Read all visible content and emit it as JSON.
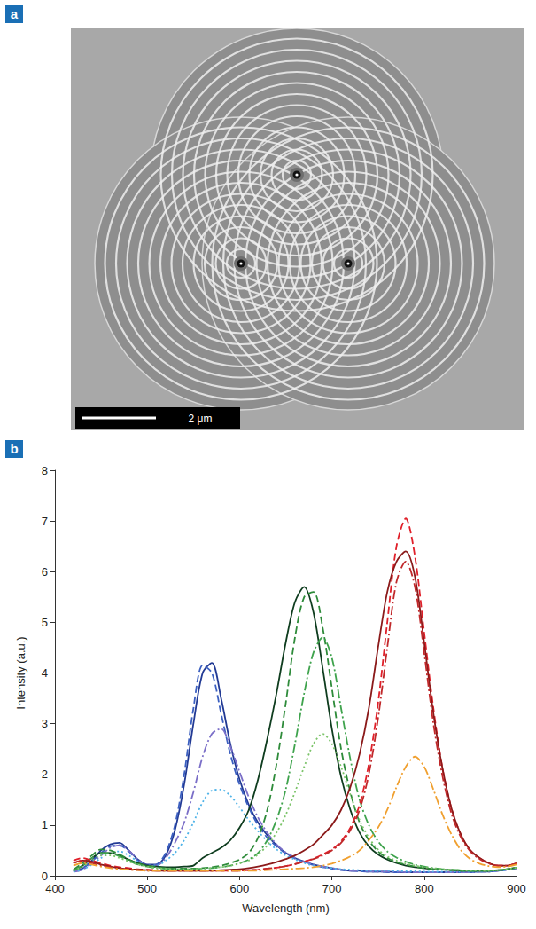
{
  "image_panel": {
    "panel_label": "a",
    "scale_bar": "2 μm"
  },
  "chart_data": {
    "panel_label": "b",
    "type": "line",
    "x_label": "Wavelength (nm)",
    "y_label": "Intensity (a.u.)",
    "xlim": [
      400,
      900
    ],
    "xticks": [
      400,
      500,
      600,
      700,
      800,
      900
    ],
    "ylim": [
      0,
      8
    ],
    "yticks": [
      0,
      1,
      2,
      3,
      4,
      5,
      6,
      7,
      8
    ],
    "grid": false,
    "x": [
      420,
      430,
      440,
      450,
      460,
      470,
      480,
      490,
      500,
      510,
      520,
      530,
      540,
      550,
      560,
      570,
      580,
      590,
      600,
      610,
      620,
      630,
      640,
      650,
      660,
      670,
      680,
      690,
      700,
      710,
      720,
      730,
      740,
      750,
      760,
      770,
      780,
      790,
      800,
      810,
      820,
      830,
      840,
      850,
      860,
      870,
      880,
      890,
      900
    ],
    "series": [
      {
        "color": "#223a94",
        "line_style": "solid",
        "values": [
          0.1,
          0.15,
          0.3,
          0.5,
          0.62,
          0.65,
          0.5,
          0.32,
          0.22,
          0.22,
          0.4,
          0.9,
          1.8,
          3.0,
          4.0,
          4.2,
          3.5,
          2.6,
          1.9,
          1.4,
          1.05,
          0.8,
          0.6,
          0.45,
          0.35,
          0.28,
          0.22,
          0.18,
          0.15,
          0.12,
          0.1,
          0.1,
          0.08,
          0.08,
          0.08,
          0.07,
          0.07,
          0.07,
          0.07,
          0.07,
          0.07,
          0.07,
          0.07,
          0.07,
          0.08,
          0.08,
          0.1,
          0.12,
          0.15
        ]
      },
      {
        "color": "#3b5fc0",
        "line_style": "dashed",
        "values": [
          0.1,
          0.15,
          0.28,
          0.45,
          0.58,
          0.6,
          0.48,
          0.3,
          0.2,
          0.22,
          0.45,
          1.0,
          2.0,
          3.3,
          4.15,
          4.0,
          3.2,
          2.4,
          1.8,
          1.35,
          1.0,
          0.75,
          0.58,
          0.44,
          0.34,
          0.27,
          0.21,
          0.17,
          0.14,
          0.11,
          0.1,
          0.09,
          0.08,
          0.08,
          0.07,
          0.07,
          0.07,
          0.07,
          0.07,
          0.07,
          0.07,
          0.07,
          0.07,
          0.07,
          0.08,
          0.08,
          0.1,
          0.12,
          0.15
        ]
      },
      {
        "color": "#7b6fc8",
        "line_style": "dashdot",
        "values": [
          0.08,
          0.12,
          0.25,
          0.4,
          0.55,
          0.6,
          0.5,
          0.32,
          0.2,
          0.2,
          0.35,
          0.65,
          1.05,
          1.65,
          2.35,
          2.8,
          2.9,
          2.55,
          2.05,
          1.55,
          1.15,
          0.85,
          0.62,
          0.46,
          0.36,
          0.28,
          0.22,
          0.18,
          0.15,
          0.12,
          0.1,
          0.1,
          0.09,
          0.08,
          0.08,
          0.08,
          0.07,
          0.07,
          0.07,
          0.07,
          0.07,
          0.07,
          0.07,
          0.07,
          0.08,
          0.08,
          0.1,
          0.12,
          0.15
        ]
      },
      {
        "color": "#4fb3e8",
        "line_style": "dotted",
        "values": [
          0.08,
          0.12,
          0.22,
          0.35,
          0.45,
          0.48,
          0.4,
          0.28,
          0.2,
          0.2,
          0.3,
          0.45,
          0.7,
          1.05,
          1.45,
          1.68,
          1.7,
          1.58,
          1.35,
          1.1,
          0.88,
          0.68,
          0.52,
          0.4,
          0.32,
          0.25,
          0.2,
          0.17,
          0.15,
          0.13,
          0.12,
          0.11,
          0.1,
          0.1,
          0.1,
          0.1,
          0.09,
          0.09,
          0.08,
          0.08,
          0.08,
          0.08,
          0.08,
          0.08,
          0.08,
          0.09,
          0.1,
          0.12,
          0.15
        ]
      },
      {
        "color": "#0f3d1f",
        "line_style": "solid",
        "values": [
          0.1,
          0.2,
          0.35,
          0.45,
          0.45,
          0.4,
          0.32,
          0.25,
          0.2,
          0.18,
          0.17,
          0.17,
          0.18,
          0.2,
          0.35,
          0.45,
          0.55,
          0.7,
          0.95,
          1.3,
          1.9,
          2.7,
          3.6,
          4.6,
          5.4,
          5.7,
          5.2,
          4.1,
          2.9,
          1.95,
          1.3,
          0.85,
          0.58,
          0.42,
          0.32,
          0.25,
          0.2,
          0.17,
          0.15,
          0.13,
          0.12,
          0.11,
          0.1,
          0.1,
          0.1,
          0.1,
          0.11,
          0.13,
          0.16
        ]
      },
      {
        "color": "#2e8b3a",
        "line_style": "dashed",
        "values": [
          0.12,
          0.25,
          0.4,
          0.52,
          0.5,
          0.42,
          0.32,
          0.24,
          0.2,
          0.17,
          0.15,
          0.14,
          0.14,
          0.14,
          0.15,
          0.17,
          0.2,
          0.25,
          0.32,
          0.45,
          0.75,
          1.3,
          2.2,
          3.4,
          4.7,
          5.5,
          5.6,
          4.9,
          3.7,
          2.5,
          1.65,
          1.05,
          0.7,
          0.48,
          0.35,
          0.27,
          0.22,
          0.18,
          0.15,
          0.13,
          0.12,
          0.11,
          0.1,
          0.1,
          0.1,
          0.1,
          0.11,
          0.13,
          0.16
        ]
      },
      {
        "color": "#3fa34d",
        "line_style": "dashdot",
        "values": [
          0.1,
          0.2,
          0.35,
          0.45,
          0.45,
          0.38,
          0.3,
          0.22,
          0.18,
          0.15,
          0.14,
          0.13,
          0.13,
          0.13,
          0.14,
          0.15,
          0.17,
          0.2,
          0.25,
          0.32,
          0.45,
          0.7,
          1.1,
          1.7,
          2.6,
          3.6,
          4.4,
          4.7,
          4.3,
          3.3,
          2.3,
          1.5,
          1.0,
          0.68,
          0.48,
          0.36,
          0.28,
          0.22,
          0.18,
          0.15,
          0.13,
          0.12,
          0.11,
          0.1,
          0.1,
          0.1,
          0.11,
          0.13,
          0.16
        ]
      },
      {
        "color": "#7cc46a",
        "line_style": "dotted",
        "values": [
          0.1,
          0.18,
          0.3,
          0.4,
          0.4,
          0.35,
          0.28,
          0.22,
          0.18,
          0.15,
          0.14,
          0.13,
          0.13,
          0.13,
          0.14,
          0.15,
          0.17,
          0.2,
          0.24,
          0.3,
          0.42,
          0.6,
          0.85,
          1.2,
          1.65,
          2.15,
          2.6,
          2.8,
          2.6,
          2.15,
          1.6,
          1.1,
          0.75,
          0.52,
          0.38,
          0.3,
          0.24,
          0.2,
          0.17,
          0.15,
          0.13,
          0.12,
          0.11,
          0.1,
          0.1,
          0.1,
          0.11,
          0.13,
          0.16
        ]
      },
      {
        "color": "#e0202a",
        "line_style": "dashed",
        "values": [
          0.3,
          0.35,
          0.3,
          0.25,
          0.2,
          0.17,
          0.15,
          0.13,
          0.12,
          0.11,
          0.1,
          0.1,
          0.1,
          0.1,
          0.1,
          0.1,
          0.1,
          0.1,
          0.1,
          0.11,
          0.12,
          0.14,
          0.16,
          0.19,
          0.23,
          0.28,
          0.34,
          0.42,
          0.52,
          0.68,
          0.95,
          1.4,
          2.2,
          3.4,
          5.0,
          6.5,
          7.05,
          6.3,
          4.8,
          3.3,
          2.1,
          1.3,
          0.8,
          0.5,
          0.35,
          0.25,
          0.2,
          0.2,
          0.25
        ]
      },
      {
        "color": "#8b1a1a",
        "line_style": "solid",
        "values": [
          0.25,
          0.3,
          0.28,
          0.22,
          0.18,
          0.15,
          0.13,
          0.12,
          0.11,
          0.1,
          0.1,
          0.1,
          0.1,
          0.1,
          0.1,
          0.1,
          0.11,
          0.12,
          0.13,
          0.15,
          0.18,
          0.22,
          0.27,
          0.33,
          0.4,
          0.5,
          0.62,
          0.8,
          1.0,
          1.3,
          1.75,
          2.4,
          3.3,
          4.5,
          5.6,
          6.2,
          6.4,
          5.9,
          4.6,
          3.2,
          2.1,
          1.3,
          0.8,
          0.5,
          0.35,
          0.25,
          0.2,
          0.2,
          0.25
        ]
      },
      {
        "color": "#c0282a",
        "line_style": "dashdot",
        "values": [
          0.25,
          0.3,
          0.25,
          0.2,
          0.17,
          0.14,
          0.12,
          0.11,
          0.1,
          0.1,
          0.1,
          0.1,
          0.1,
          0.1,
          0.1,
          0.1,
          0.1,
          0.1,
          0.1,
          0.11,
          0.12,
          0.14,
          0.16,
          0.19,
          0.23,
          0.28,
          0.33,
          0.4,
          0.5,
          0.65,
          0.9,
          1.3,
          2.0,
          3.1,
          4.5,
          5.8,
          6.2,
          5.7,
          4.4,
          3.0,
          1.95,
          1.2,
          0.75,
          0.48,
          0.33,
          0.24,
          0.2,
          0.2,
          0.25
        ]
      },
      {
        "color": "#f0a030",
        "line_style": "dashdot",
        "values": [
          0.2,
          0.25,
          0.22,
          0.18,
          0.15,
          0.13,
          0.12,
          0.11,
          0.1,
          0.1,
          0.1,
          0.1,
          0.1,
          0.1,
          0.1,
          0.1,
          0.1,
          0.1,
          0.1,
          0.1,
          0.1,
          0.11,
          0.12,
          0.13,
          0.14,
          0.15,
          0.17,
          0.2,
          0.24,
          0.3,
          0.38,
          0.5,
          0.7,
          0.95,
          1.3,
          1.75,
          2.15,
          2.35,
          2.15,
          1.7,
          1.2,
          0.8,
          0.5,
          0.33,
          0.24,
          0.19,
          0.17,
          0.18,
          0.22
        ]
      }
    ]
  }
}
